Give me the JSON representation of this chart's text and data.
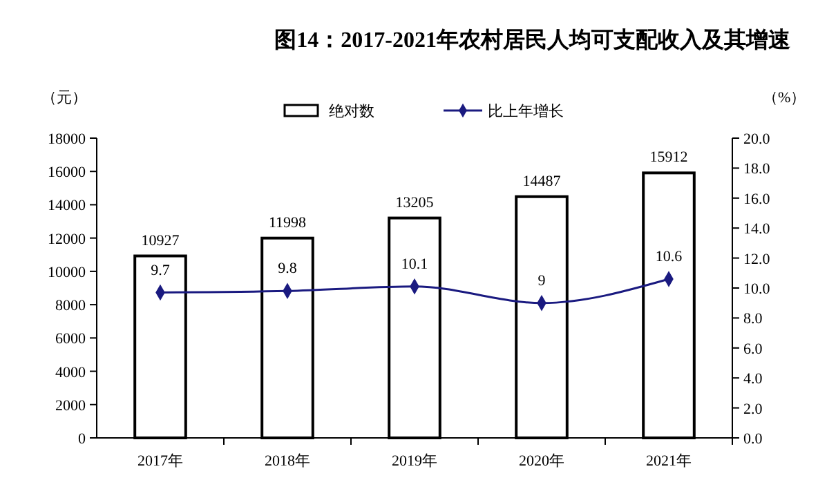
{
  "chart_data": {
    "type": "bar",
    "title": "图14：2017-2021年农村居民人均可支配收入及其增速",
    "ylabel": "（元）",
    "y2label": "（%）",
    "categories": [
      "2017年",
      "2018年",
      "2019年",
      "2020年",
      "2021年"
    ],
    "series": [
      {
        "name": "绝对数",
        "color": "#ffffff",
        "values": [
          10927,
          11998,
          13205,
          14487,
          15912
        ]
      },
      {
        "name": "比上年增长",
        "type": "line",
        "axis": "y2",
        "color": "#1a1a80",
        "marker": "diamond",
        "values": [
          9.7,
          9.8,
          10.1,
          9,
          10.6
        ]
      }
    ],
    "ylim": [
      0,
      18000
    ],
    "yticks": [
      0,
      2000,
      4000,
      6000,
      8000,
      10000,
      12000,
      14000,
      16000,
      18000
    ],
    "y2lim": [
      0,
      20
    ],
    "y2ticks": [
      {
        "value": 0,
        "label": "0.0"
      },
      {
        "value": 2,
        "label": "2.0"
      },
      {
        "value": 4,
        "label": "4.0"
      },
      {
        "value": 6,
        "label": "6.0"
      },
      {
        "value": 8,
        "label": "8.0"
      },
      {
        "value": 10,
        "label": "10.0"
      },
      {
        "value": 12,
        "label": "12.0"
      },
      {
        "value": 14,
        "label": "14.0"
      },
      {
        "value": 16,
        "label": "16.0"
      },
      {
        "value": 18,
        "label": "18.0"
      },
      {
        "value": 20,
        "label": "20.0"
      }
    ],
    "data_labels": true,
    "legend": "top"
  }
}
